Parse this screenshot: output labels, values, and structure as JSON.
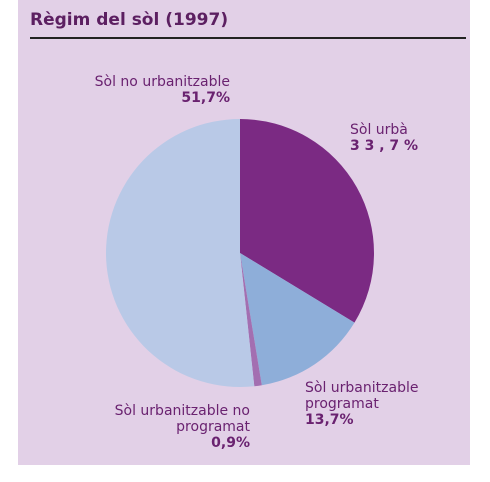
{
  "chart_data": {
    "type": "pie",
    "title": "Règim del sòl (1997)",
    "categories": [
      "Sòl urbà",
      "Sòl urbanitzable programat",
      "Sòl urbanitzable no programat",
      "Sòl no urbanitzable"
    ],
    "values": [
      33.7,
      13.7,
      0.9,
      51.7
    ],
    "value_labels": [
      "3 3 , 7 %",
      "13,7%",
      "0,9%",
      "51,7%"
    ],
    "colors": [
      "#7b2a83",
      "#8eaed9",
      "#a36fb1",
      "#b9c9e7"
    ]
  }
}
